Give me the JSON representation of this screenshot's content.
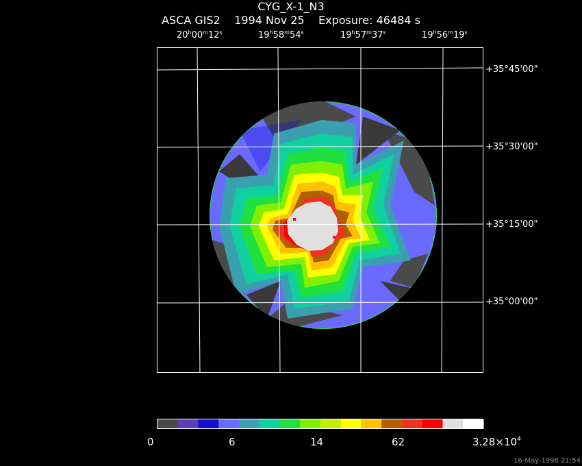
{
  "header": {
    "target": "CYG_X-1_N3",
    "instrument": "ASCA GIS2",
    "date": "1994 Nov 25",
    "exposure": "Exposure: 46484 s"
  },
  "ra_labels": [
    {
      "h": "20",
      "m": "00",
      "s": "12",
      "unit_h": "h",
      "unit_m": "m",
      "unit_s": "s"
    },
    {
      "h": "19",
      "m": "58",
      "s": "54",
      "unit_h": "h",
      "unit_m": "m",
      "unit_s": "s"
    },
    {
      "h": "19",
      "m": "57",
      "s": "37",
      "unit_h": "h",
      "unit_m": "m",
      "unit_s": "s"
    },
    {
      "h": "19",
      "m": "56",
      "s": "19",
      "unit_h": "h",
      "unit_m": "m",
      "unit_s": "s"
    }
  ],
  "dec_labels": [
    "+35°45'00\"",
    "+35°30'00\"",
    "+35°15'00\"",
    "+35°00'00\""
  ],
  "colorbar": {
    "colors": [
      "#4a4a4a",
      "#5a3fb5",
      "#1010d0",
      "#6a6aff",
      "#3aa0b0",
      "#10d0a0",
      "#20e040",
      "#80f000",
      "#c0f000",
      "#ffff00",
      "#ffc000",
      "#b06000",
      "#f03020",
      "#ff0000",
      "#e0e0e0",
      "#ffffff"
    ],
    "tick_labels": [
      "0",
      "6",
      "14",
      "62",
      "3.28×10"
    ],
    "exponent": "4"
  },
  "timestamp": "16-May-1998 21:54"
}
